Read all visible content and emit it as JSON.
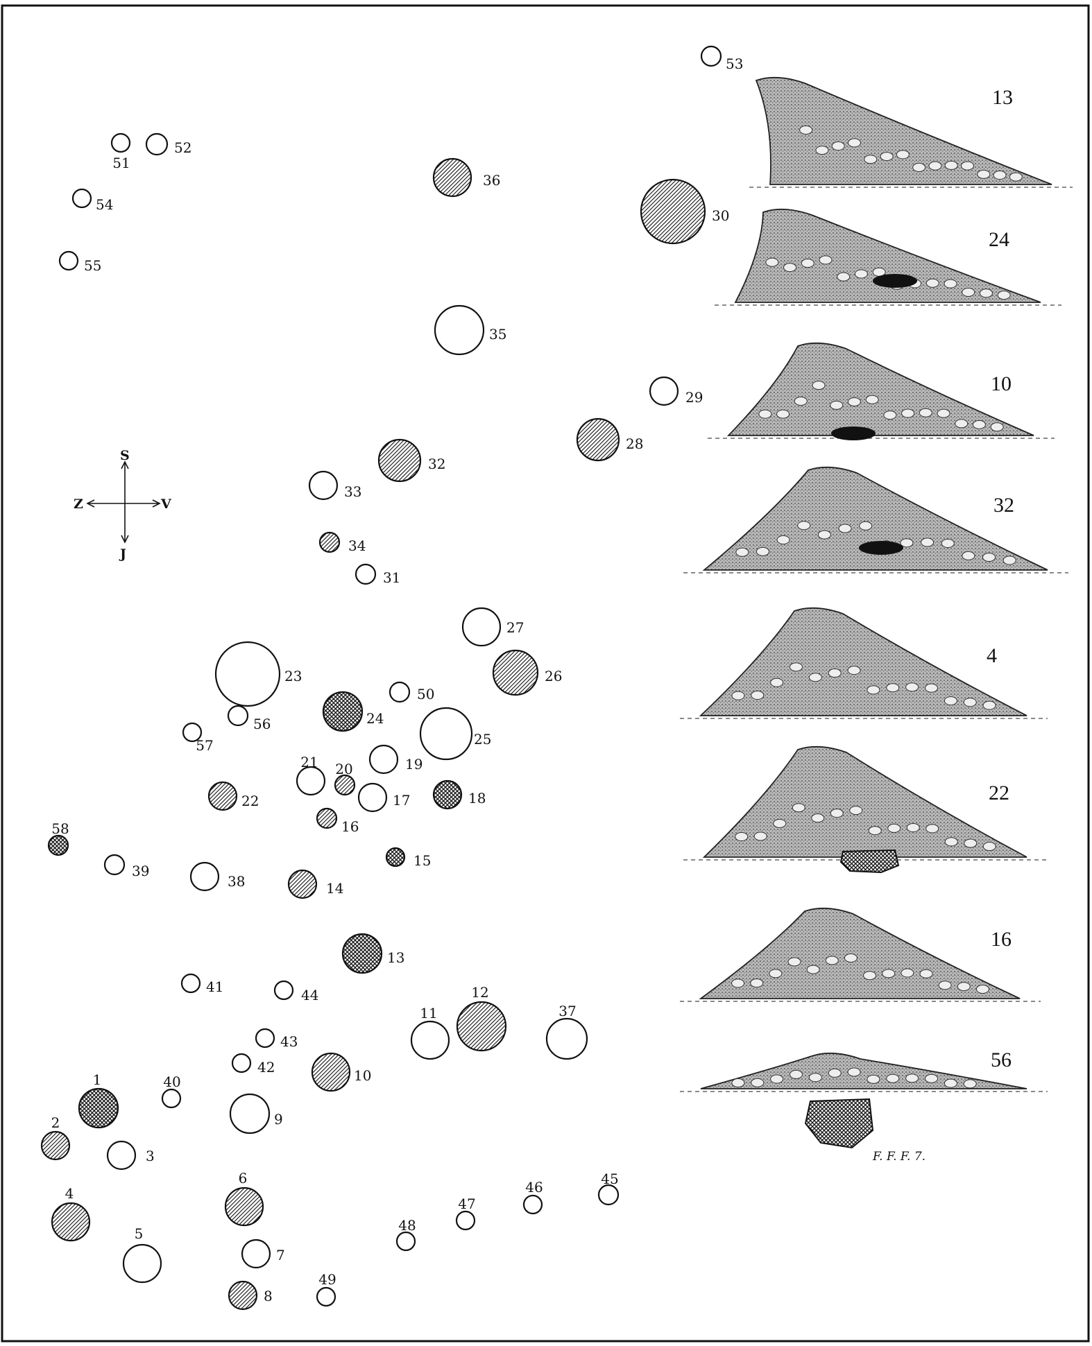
{
  "compass": {
    "north": "S",
    "south": "J",
    "west": "Z",
    "east": "V"
  },
  "signature": "F. F. F. 7.",
  "tumuli": [
    {
      "n": "1",
      "fill": "cross"
    },
    {
      "n": "2",
      "fill": "hatch"
    },
    {
      "n": "3",
      "fill": "open"
    },
    {
      "n": "4",
      "fill": "hatch"
    },
    {
      "n": "5",
      "fill": "open"
    },
    {
      "n": "6",
      "fill": "hatch"
    },
    {
      "n": "7",
      "fill": "open"
    },
    {
      "n": "8",
      "fill": "hatch"
    },
    {
      "n": "9",
      "fill": "open"
    },
    {
      "n": "10",
      "fill": "hatch"
    },
    {
      "n": "11",
      "fill": "open"
    },
    {
      "n": "12",
      "fill": "hatch"
    },
    {
      "n": "13",
      "fill": "cross"
    },
    {
      "n": "14",
      "fill": "hatch"
    },
    {
      "n": "15",
      "fill": "cross"
    },
    {
      "n": "16",
      "fill": "hatch"
    },
    {
      "n": "17",
      "fill": "open"
    },
    {
      "n": "18",
      "fill": "cross"
    },
    {
      "n": "19",
      "fill": "open"
    },
    {
      "n": "20",
      "fill": "hatch"
    },
    {
      "n": "21",
      "fill": "open"
    },
    {
      "n": "22",
      "fill": "hatch"
    },
    {
      "n": "23",
      "fill": "open"
    },
    {
      "n": "24",
      "fill": "cross"
    },
    {
      "n": "25",
      "fill": "open"
    },
    {
      "n": "26",
      "fill": "hatch"
    },
    {
      "n": "27",
      "fill": "open"
    },
    {
      "n": "28",
      "fill": "hatch"
    },
    {
      "n": "29",
      "fill": "open"
    },
    {
      "n": "30",
      "fill": "hatch"
    },
    {
      "n": "31",
      "fill": "open"
    },
    {
      "n": "32",
      "fill": "hatch"
    },
    {
      "n": "33",
      "fill": "open"
    },
    {
      "n": "34",
      "fill": "hatch"
    },
    {
      "n": "35",
      "fill": "open"
    },
    {
      "n": "36",
      "fill": "hatch"
    },
    {
      "n": "37",
      "fill": "open"
    },
    {
      "n": "38",
      "fill": "open"
    },
    {
      "n": "39",
      "fill": "open"
    },
    {
      "n": "40",
      "fill": "open"
    },
    {
      "n": "41",
      "fill": "open"
    },
    {
      "n": "42",
      "fill": "open"
    },
    {
      "n": "43",
      "fill": "open"
    },
    {
      "n": "44",
      "fill": "open"
    },
    {
      "n": "45",
      "fill": "open"
    },
    {
      "n": "46",
      "fill": "open"
    },
    {
      "n": "47",
      "fill": "open"
    },
    {
      "n": "48",
      "fill": "open"
    },
    {
      "n": "49",
      "fill": "open"
    },
    {
      "n": "50",
      "fill": "open"
    },
    {
      "n": "51",
      "fill": "open"
    },
    {
      "n": "52",
      "fill": "open"
    },
    {
      "n": "53",
      "fill": "open"
    },
    {
      "n": "54",
      "fill": "open"
    },
    {
      "n": "55",
      "fill": "open"
    },
    {
      "n": "56",
      "fill": "open"
    },
    {
      "n": "57",
      "fill": "open"
    },
    {
      "n": "58",
      "fill": "cross"
    }
  ],
  "profiles": [
    "13",
    "24",
    "10",
    "32",
    "4",
    "22",
    "16",
    "56"
  ]
}
